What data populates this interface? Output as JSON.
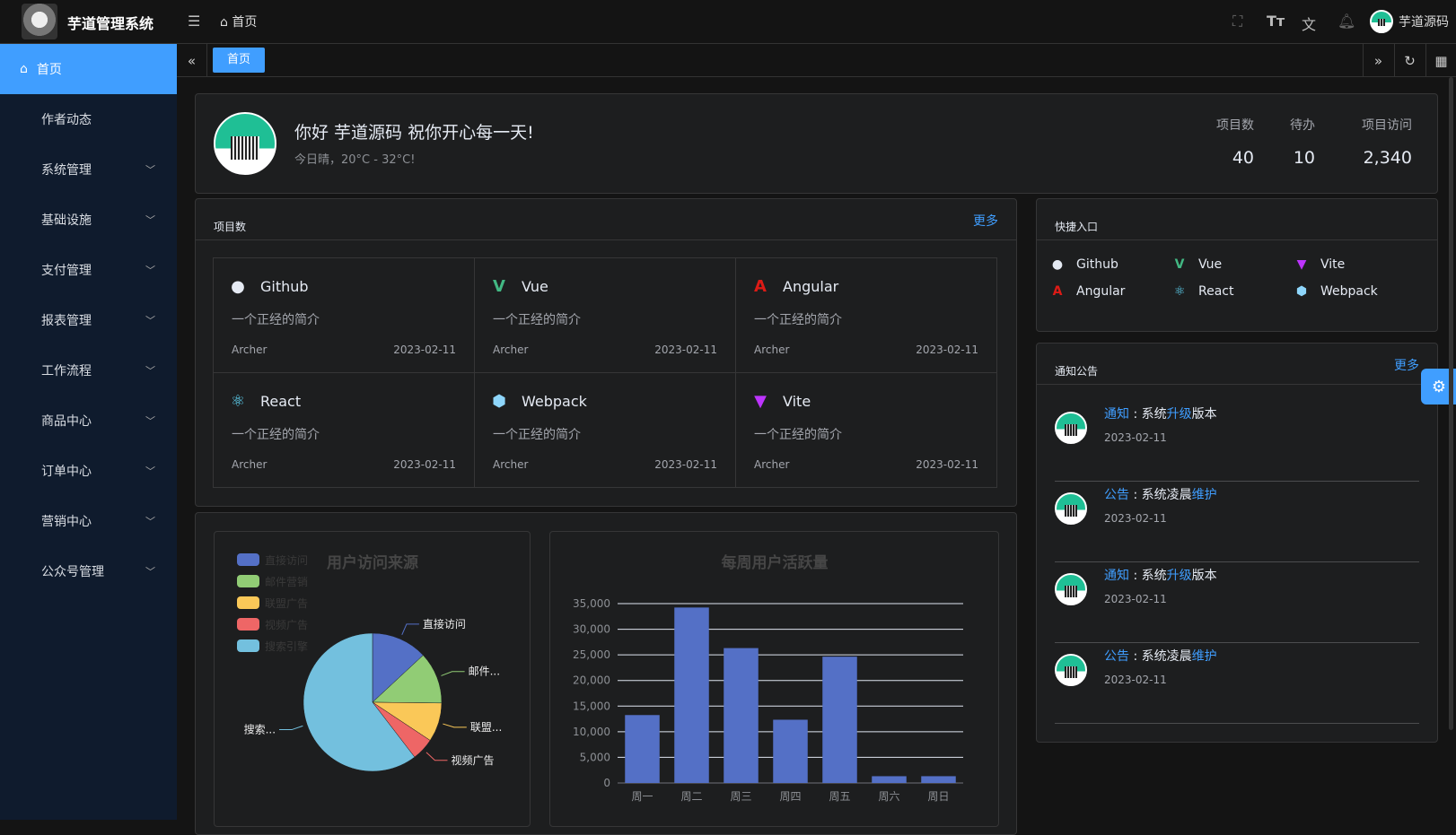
{
  "header": {
    "app_title": "芋道管理系统",
    "breadcrumb": "首页",
    "user_name": "芋道源码",
    "icons": [
      "menu-fold-icon",
      "home-icon",
      "fullscreen-icon",
      "font-size-icon",
      "translate-icon",
      "bell-icon"
    ]
  },
  "sidebar": {
    "items": [
      {
        "label": "首页",
        "active": true
      },
      {
        "label": "作者动态"
      },
      {
        "label": "系统管理",
        "expand": true
      },
      {
        "label": "基础设施",
        "expand": true
      },
      {
        "label": "支付管理",
        "expand": true
      },
      {
        "label": "报表管理",
        "expand": true
      },
      {
        "label": "工作流程",
        "expand": true
      },
      {
        "label": "商品中心",
        "expand": true
      },
      {
        "label": "订单中心",
        "expand": true
      },
      {
        "label": "营销中心",
        "expand": true
      },
      {
        "label": "公众号管理",
        "expand": true
      }
    ]
  },
  "tabs": {
    "active": "首页"
  },
  "welcome": {
    "greeting": "你好 芋道源码 祝你开心每一天!",
    "weather": "今日晴，20°C - 32°C!",
    "stats": [
      {
        "label": "项目数",
        "value": "40"
      },
      {
        "label": "待办",
        "value": "10"
      },
      {
        "label": "项目访问",
        "value": "2,340"
      }
    ]
  },
  "projects": {
    "title": "项目数",
    "more": "更多",
    "items": [
      {
        "name": "Github",
        "desc": "一个正经的简介",
        "author": "Archer",
        "date": "2023-02-11",
        "icon": "github-icon",
        "color": "#e5eaf3"
      },
      {
        "name": "Vue",
        "desc": "一个正经的简介",
        "author": "Archer",
        "date": "2023-02-11",
        "icon": "vue-icon",
        "color": "#42b883"
      },
      {
        "name": "Angular",
        "desc": "一个正经的简介",
        "author": "Archer",
        "date": "2023-02-11",
        "icon": "angular-icon",
        "color": "#dd1b16"
      },
      {
        "name": "React",
        "desc": "一个正经的简介",
        "author": "Archer",
        "date": "2023-02-11",
        "icon": "react-icon",
        "color": "#61dafb"
      },
      {
        "name": "Webpack",
        "desc": "一个正经的简介",
        "author": "Archer",
        "date": "2023-02-11",
        "icon": "webpack-icon",
        "color": "#8ed6fb"
      },
      {
        "name": "Vite",
        "desc": "一个正经的简介",
        "author": "Archer",
        "date": "2023-02-11",
        "icon": "vite-icon",
        "color": "#bd34fe"
      }
    ]
  },
  "quick": {
    "title": "快捷入口",
    "items": [
      {
        "name": "Github",
        "icon": "github-icon"
      },
      {
        "name": "Vue",
        "icon": "vue-icon"
      },
      {
        "name": "Vite",
        "icon": "vite-icon"
      },
      {
        "name": "Angular",
        "icon": "angular-icon"
      },
      {
        "name": "React",
        "icon": "react-icon"
      },
      {
        "name": "Webpack",
        "icon": "webpack-icon"
      }
    ]
  },
  "notices": {
    "title": "通知公告",
    "more": "更多",
    "items": [
      {
        "type": "通知",
        "parts": [
          {
            "t": "系统",
            "hl": false
          },
          {
            "t": "升级",
            "hl": true
          },
          {
            "t": "版本",
            "hl": false
          }
        ],
        "date": "2023-02-11"
      },
      {
        "type": "公告",
        "parts": [
          {
            "t": "系统凌晨",
            "hl": false
          },
          {
            "t": "维护",
            "hl": true
          }
        ],
        "date": "2023-02-11"
      },
      {
        "type": "通知",
        "parts": [
          {
            "t": "系统",
            "hl": false
          },
          {
            "t": "升级",
            "hl": true
          },
          {
            "t": "版本",
            "hl": false
          }
        ],
        "date": "2023-02-11"
      },
      {
        "type": "公告",
        "parts": [
          {
            "t": "系统凌晨",
            "hl": false
          },
          {
            "t": "维护",
            "hl": true
          }
        ],
        "date": "2023-02-11"
      }
    ]
  },
  "chart_data": [
    {
      "type": "pie",
      "title": "用户访问来源",
      "legend_position": "top-left",
      "categories": [
        "直接访问",
        "邮件营销",
        "联盟广告",
        "视频广告",
        "搜索引擎"
      ],
      "slice_labels": [
        "直接访问",
        "邮件...",
        "联盟...",
        "视频广告",
        "搜索..."
      ],
      "values": [
        335,
        310,
        234,
        135,
        1548
      ],
      "colors": [
        "#5470c6",
        "#91cc75",
        "#fac858",
        "#ee6666",
        "#73c0de"
      ]
    },
    {
      "type": "bar",
      "title": "每周用户活跃量",
      "categories": [
        "周一",
        "周二",
        "周三",
        "周四",
        "周五",
        "周六",
        "周日"
      ],
      "values": [
        13253,
        34235,
        26321,
        12340,
        24643,
        1322,
        1324
      ],
      "ylim": [
        0,
        35000
      ],
      "yticks": [
        "0",
        "5,000",
        "10,000",
        "15,000",
        "20,000",
        "25,000",
        "30,000",
        "35,000"
      ],
      "grid": true,
      "color": "#5470c6"
    }
  ]
}
